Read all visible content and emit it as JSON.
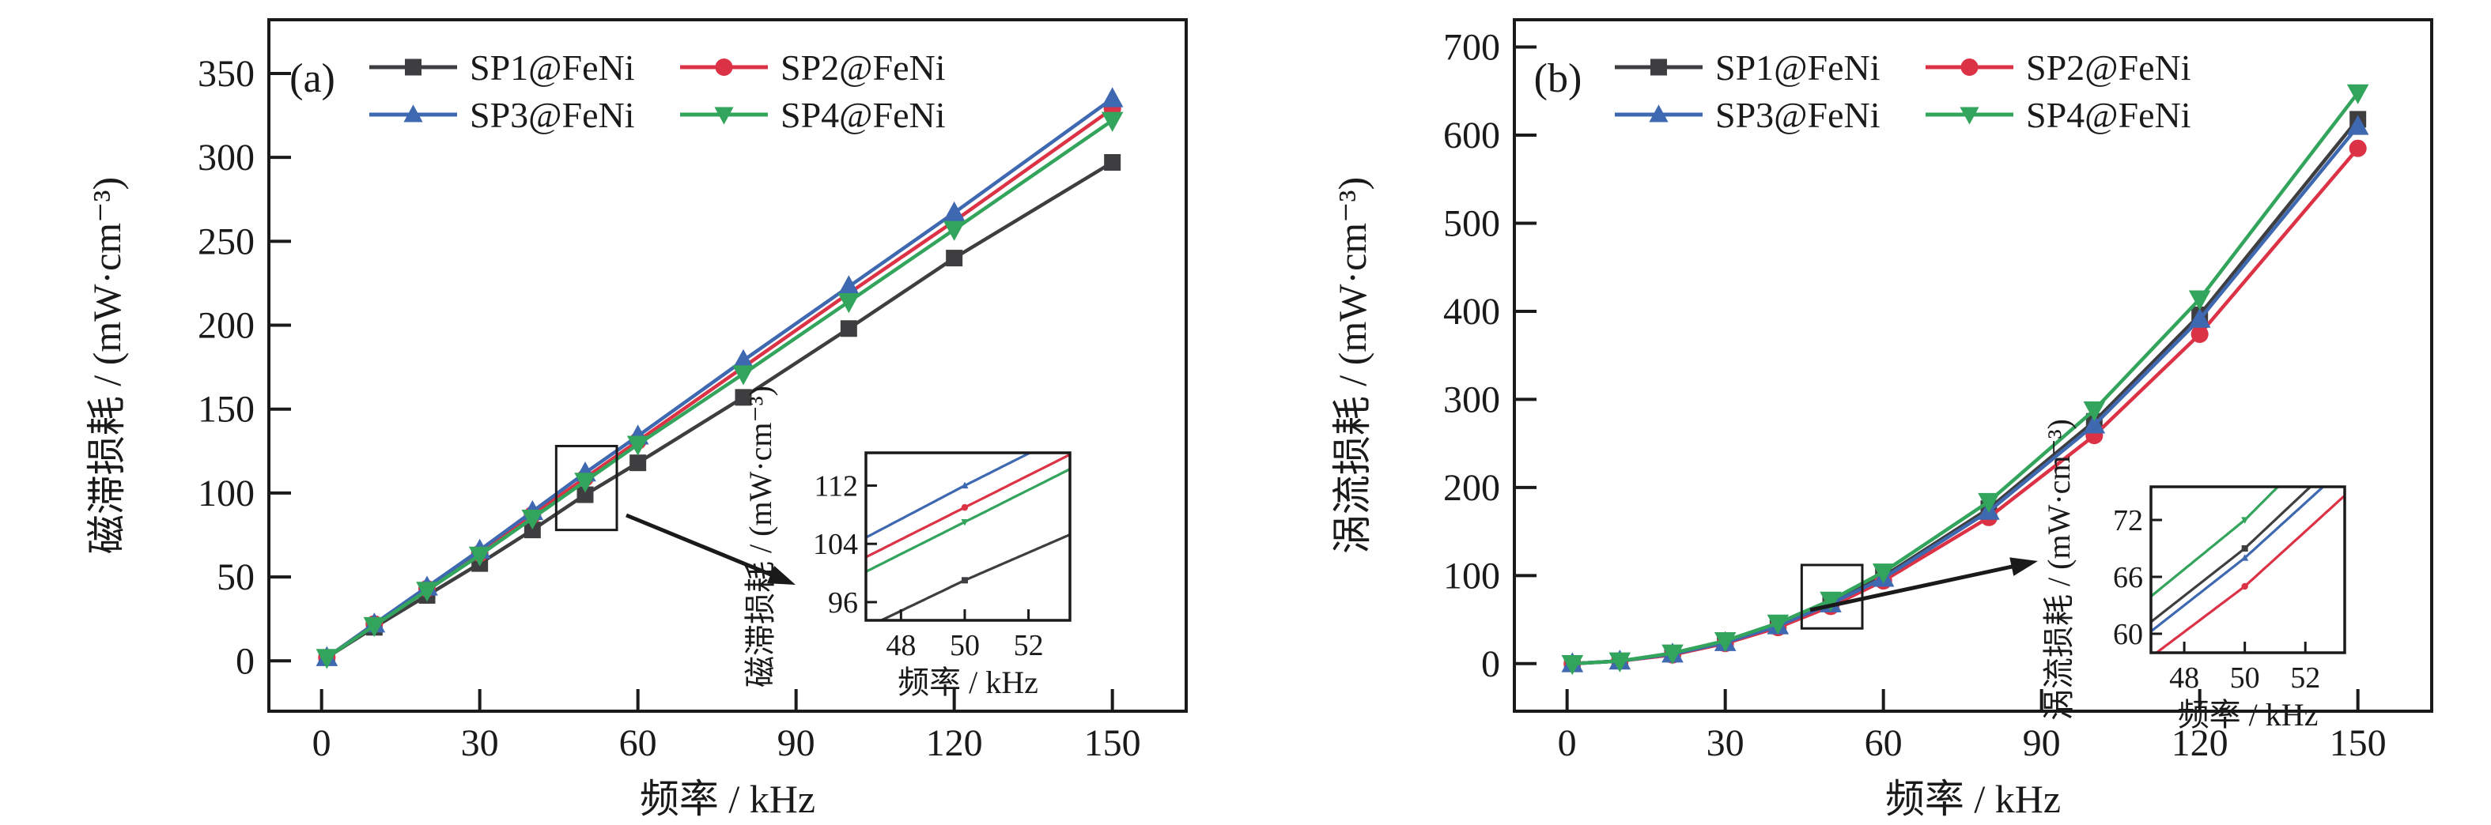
{
  "figure": {
    "background": "#ffffff",
    "xlabel": "频率 / kHz",
    "legend_items": [
      "SP1@FeNi",
      "SP2@FeNi",
      "SP3@FeNi",
      "SP4@FeNi"
    ]
  },
  "chart_data": [
    {
      "type": "line",
      "panel_tag": "(a)",
      "title": "",
      "xlabel": "频率 / kHz",
      "ylabel": "磁滞损耗 / (mW·cm⁻³)",
      "x": [
        1,
        10,
        20,
        30,
        40,
        50,
        60,
        80,
        100,
        120,
        150
      ],
      "xticks": [
        0,
        30,
        60,
        90,
        120,
        150
      ],
      "yticks": [
        0,
        50,
        100,
        150,
        200,
        250,
        300,
        350
      ],
      "xlim": [
        -10,
        164
      ],
      "ylim": [
        -30,
        382
      ],
      "grid": false,
      "legend_position": "top-left-two-columns",
      "series": [
        {
          "name": "SP1@FeNi",
          "color": "#3e3e40",
          "marker": "square",
          "values": [
            2,
            20,
            39,
            58,
            78,
            99,
            118,
            157,
            198,
            240,
            297
          ]
        },
        {
          "name": "SP2@FeNi",
          "color": "#dc3246",
          "marker": "circle",
          "values": [
            2,
            22,
            43,
            64,
            87,
            109,
            131,
            175,
            219,
            262,
            329
          ]
        },
        {
          "name": "SP3@FeNi",
          "color": "#3e68b0",
          "marker": "triangle-up",
          "values": [
            2,
            22,
            44,
            66,
            89,
            112,
            134,
            179,
            223,
            267,
            335
          ]
        },
        {
          "name": "SP4@FeNi",
          "color": "#33a45c",
          "marker": "triangle-down",
          "values": [
            2,
            21,
            42,
            63,
            85,
            107,
            129,
            171,
            214,
            257,
            322
          ]
        }
      ],
      "zoom_rect": {
        "x0": 44.5,
        "x1": 56,
        "y0": 78,
        "y1": 128
      },
      "inset": {
        "xlabel": "频率 / kHz",
        "ylabel": "磁滞损耗 / (mW·cm⁻³)",
        "xticks": [
          48,
          50,
          52
        ],
        "yticks": [
          96,
          104,
          112
        ],
        "xlim": [
          46.9,
          53.3
        ],
        "ylim": [
          93.5,
          116.5
        ],
        "marker_at_x": 50
      }
    },
    {
      "type": "line",
      "panel_tag": "(b)",
      "title": "",
      "xlabel": "频率 / kHz",
      "ylabel": "涡流损耗 / (mW·cm⁻³)",
      "x": [
        1,
        10,
        20,
        30,
        40,
        50,
        60,
        80,
        100,
        120,
        150
      ],
      "xticks": [
        0,
        30,
        60,
        90,
        120,
        150
      ],
      "yticks": [
        0,
        100,
        200,
        300,
        400,
        500,
        600,
        700
      ],
      "xlim": [
        -10,
        164
      ],
      "ylim": [
        -54,
        731
      ],
      "grid": false,
      "legend_position": "top-left-two-columns",
      "series": [
        {
          "name": "SP1@FeNi",
          "color": "#3e3e40",
          "marker": "square",
          "values": [
            0,
            3,
            11,
            25,
            44,
            69,
            99,
            176,
            275,
            396,
            618
          ]
        },
        {
          "name": "SP2@FeNi",
          "color": "#dc3246",
          "marker": "circle",
          "values": [
            0,
            3,
            10,
            23,
            41,
            65,
            94,
            166,
            259,
            374,
            585
          ]
        },
        {
          "name": "SP3@FeNi",
          "color": "#3e68b0",
          "marker": "triangle-up",
          "values": [
            0,
            3,
            11,
            24,
            43,
            68,
            97,
            173,
            271,
            391,
            610
          ]
        },
        {
          "name": "SP4@FeNi",
          "color": "#33a45c",
          "marker": "triangle-down",
          "values": [
            0,
            3,
            12,
            26,
            46,
            72,
            104,
            184,
            288,
            414,
            648
          ]
        }
      ],
      "zoom_rect": {
        "x0": 44.5,
        "x1": 56,
        "y0": 40,
        "y1": 112
      },
      "inset": {
        "xlabel": "频率 / kHz",
        "ylabel": "涡流损耗 / (mW·cm⁻³)",
        "xticks": [
          48,
          50,
          52
        ],
        "yticks": [
          60,
          66,
          72
        ],
        "xlim": [
          46.9,
          53.3
        ],
        "ylim": [
          58,
          75.5
        ],
        "marker_at_x": 50
      }
    }
  ]
}
